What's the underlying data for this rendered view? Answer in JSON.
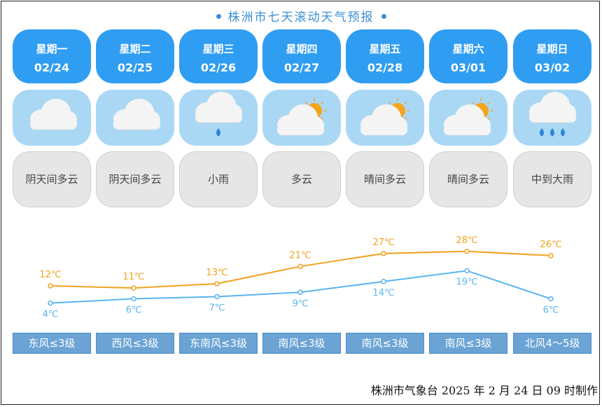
{
  "title": "株洲市七天滚动天气预报",
  "days": [
    {
      "weekday": "星期一",
      "date": "02/24",
      "weather": "阴天间多云",
      "icon": "cloudy-icon",
      "high": "12℃",
      "low": "4℃",
      "wind": "东风≤3级"
    },
    {
      "weekday": "星期二",
      "date": "02/25",
      "weather": "阴天间多云",
      "icon": "cloudy-icon",
      "high": "11℃",
      "low": "6℃",
      "wind": "西风≤3级"
    },
    {
      "weekday": "星期三",
      "date": "02/26",
      "weather": "小雨",
      "icon": "light-rain-icon",
      "high": "13℃",
      "low": "7℃",
      "wind": "东南风≤3级"
    },
    {
      "weekday": "星期四",
      "date": "02/27",
      "weather": "多云",
      "icon": "partly-cloudy-icon",
      "high": "21℃",
      "low": "9℃",
      "wind": "南风≤3级"
    },
    {
      "weekday": "星期五",
      "date": "02/28",
      "weather": "晴间多云",
      "icon": "sunny-cloudy-icon",
      "high": "27℃",
      "low": "14℃",
      "wind": "南风≤3级"
    },
    {
      "weekday": "星期六",
      "date": "03/01",
      "weather": "晴间多云",
      "icon": "sunny-cloudy-icon",
      "high": "28℃",
      "low": "19℃",
      "wind": "南风≤3级"
    },
    {
      "weekday": "星期日",
      "date": "03/02",
      "weather": "中到大雨",
      "icon": "heavy-rain-icon",
      "high": "26℃",
      "low": "6℃",
      "wind": "北风4～5级"
    }
  ],
  "colors": {
    "high": "#f2a11f",
    "low": "#5ab4f0",
    "accent": "#2f9df2"
  },
  "chart_data": {
    "type": "line",
    "categories": [
      "02/24",
      "02/25",
      "02/26",
      "02/27",
      "02/28",
      "03/01",
      "03/02"
    ],
    "series": [
      {
        "values": [
          12,
          11,
          13,
          21,
          27,
          28,
          26
        ]
      },
      {
        "values": [
          4,
          6,
          7,
          9,
          14,
          19,
          6
        ]
      }
    ]
  },
  "footer": "株洲市气象台 2025 年 2 月 24 日 09 时制作"
}
